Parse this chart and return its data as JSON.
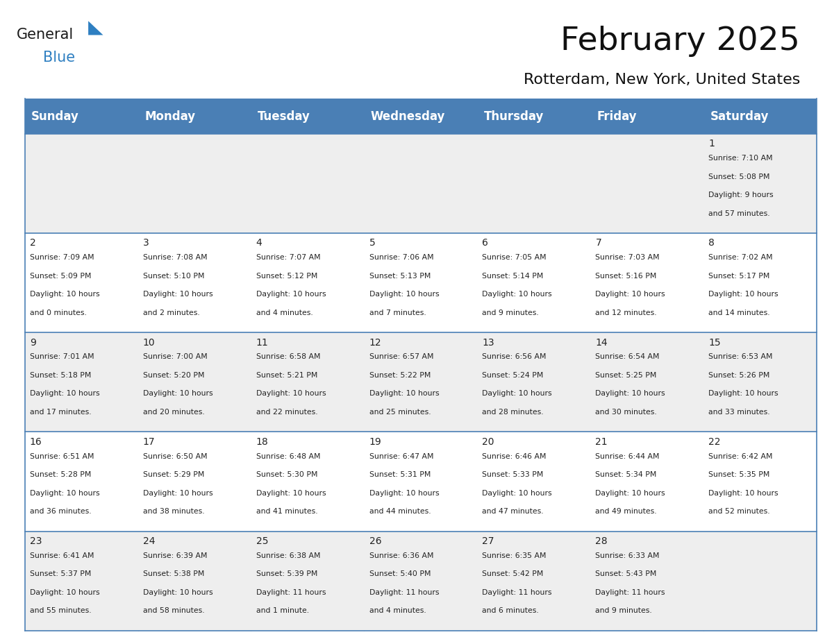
{
  "title": "February 2025",
  "subtitle": "Rotterdam, New York, United States",
  "header_color": "#4a7fb5",
  "header_text_color": "#ffffff",
  "cell_bg_odd": "#eeeeee",
  "cell_bg_even": "#ffffff",
  "border_color": "#4a7fb5",
  "text_color": "#222222",
  "days_of_week": [
    "Sunday",
    "Monday",
    "Tuesday",
    "Wednesday",
    "Thursday",
    "Friday",
    "Saturday"
  ],
  "calendar_data": [
    [
      null,
      null,
      null,
      null,
      null,
      null,
      {
        "day": "1",
        "sunrise": "7:10 AM",
        "sunset": "5:08 PM",
        "daylight": "9 hours\nand 57 minutes."
      }
    ],
    [
      {
        "day": "2",
        "sunrise": "7:09 AM",
        "sunset": "5:09 PM",
        "daylight": "10 hours\nand 0 minutes."
      },
      {
        "day": "3",
        "sunrise": "7:08 AM",
        "sunset": "5:10 PM",
        "daylight": "10 hours\nand 2 minutes."
      },
      {
        "day": "4",
        "sunrise": "7:07 AM",
        "sunset": "5:12 PM",
        "daylight": "10 hours\nand 4 minutes."
      },
      {
        "day": "5",
        "sunrise": "7:06 AM",
        "sunset": "5:13 PM",
        "daylight": "10 hours\nand 7 minutes."
      },
      {
        "day": "6",
        "sunrise": "7:05 AM",
        "sunset": "5:14 PM",
        "daylight": "10 hours\nand 9 minutes."
      },
      {
        "day": "7",
        "sunrise": "7:03 AM",
        "sunset": "5:16 PM",
        "daylight": "10 hours\nand 12 minutes."
      },
      {
        "day": "8",
        "sunrise": "7:02 AM",
        "sunset": "5:17 PM",
        "daylight": "10 hours\nand 14 minutes."
      }
    ],
    [
      {
        "day": "9",
        "sunrise": "7:01 AM",
        "sunset": "5:18 PM",
        "daylight": "10 hours\nand 17 minutes."
      },
      {
        "day": "10",
        "sunrise": "7:00 AM",
        "sunset": "5:20 PM",
        "daylight": "10 hours\nand 20 minutes."
      },
      {
        "day": "11",
        "sunrise": "6:58 AM",
        "sunset": "5:21 PM",
        "daylight": "10 hours\nand 22 minutes."
      },
      {
        "day": "12",
        "sunrise": "6:57 AM",
        "sunset": "5:22 PM",
        "daylight": "10 hours\nand 25 minutes."
      },
      {
        "day": "13",
        "sunrise": "6:56 AM",
        "sunset": "5:24 PM",
        "daylight": "10 hours\nand 28 minutes."
      },
      {
        "day": "14",
        "sunrise": "6:54 AM",
        "sunset": "5:25 PM",
        "daylight": "10 hours\nand 30 minutes."
      },
      {
        "day": "15",
        "sunrise": "6:53 AM",
        "sunset": "5:26 PM",
        "daylight": "10 hours\nand 33 minutes."
      }
    ],
    [
      {
        "day": "16",
        "sunrise": "6:51 AM",
        "sunset": "5:28 PM",
        "daylight": "10 hours\nand 36 minutes."
      },
      {
        "day": "17",
        "sunrise": "6:50 AM",
        "sunset": "5:29 PM",
        "daylight": "10 hours\nand 38 minutes."
      },
      {
        "day": "18",
        "sunrise": "6:48 AM",
        "sunset": "5:30 PM",
        "daylight": "10 hours\nand 41 minutes."
      },
      {
        "day": "19",
        "sunrise": "6:47 AM",
        "sunset": "5:31 PM",
        "daylight": "10 hours\nand 44 minutes."
      },
      {
        "day": "20",
        "sunrise": "6:46 AM",
        "sunset": "5:33 PM",
        "daylight": "10 hours\nand 47 minutes."
      },
      {
        "day": "21",
        "sunrise": "6:44 AM",
        "sunset": "5:34 PM",
        "daylight": "10 hours\nand 49 minutes."
      },
      {
        "day": "22",
        "sunrise": "6:42 AM",
        "sunset": "5:35 PM",
        "daylight": "10 hours\nand 52 minutes."
      }
    ],
    [
      {
        "day": "23",
        "sunrise": "6:41 AM",
        "sunset": "5:37 PM",
        "daylight": "10 hours\nand 55 minutes."
      },
      {
        "day": "24",
        "sunrise": "6:39 AM",
        "sunset": "5:38 PM",
        "daylight": "10 hours\nand 58 minutes."
      },
      {
        "day": "25",
        "sunrise": "6:38 AM",
        "sunset": "5:39 PM",
        "daylight": "11 hours\nand 1 minute."
      },
      {
        "day": "26",
        "sunrise": "6:36 AM",
        "sunset": "5:40 PM",
        "daylight": "11 hours\nand 4 minutes."
      },
      {
        "day": "27",
        "sunrise": "6:35 AM",
        "sunset": "5:42 PM",
        "daylight": "11 hours\nand 6 minutes."
      },
      {
        "day": "28",
        "sunrise": "6:33 AM",
        "sunset": "5:43 PM",
        "daylight": "11 hours\nand 9 minutes."
      },
      null
    ]
  ],
  "logo_general_color": "#1a1a1a",
  "logo_blue_color": "#2e7fc1",
  "logo_triangle_color": "#2e7fc1",
  "title_fontsize": 34,
  "subtitle_fontsize": 16,
  "header_fontsize": 12,
  "day_num_fontsize": 10,
  "info_fontsize": 7.8
}
